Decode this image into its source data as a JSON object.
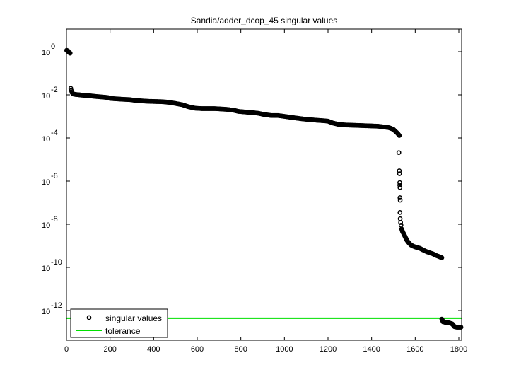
{
  "chart_data": {
    "type": "scatter",
    "title": "Sandia/adder_dcop_45 singular values",
    "xlabel": "",
    "ylabel": "",
    "xlim": [
      0,
      1813
    ],
    "ylim_log10": [
      -13.3,
      1.05
    ],
    "yscale": "log",
    "grid": false,
    "legend_position": "lower left",
    "x_ticks": [
      0,
      200,
      400,
      600,
      800,
      1000,
      1200,
      1400,
      1600,
      1800
    ],
    "y_ticks": [
      {
        "exp": 0,
        "base": "10",
        "sup": "0"
      },
      {
        "exp": -2,
        "base": "10",
        "sup": "-2"
      },
      {
        "exp": -4,
        "base": "10",
        "sup": "-4"
      },
      {
        "exp": -6,
        "base": "10",
        "sup": "-6"
      },
      {
        "exp": -8,
        "base": "10",
        "sup": "-8"
      },
      {
        "exp": -10,
        "base": "10",
        "sup": "-10"
      },
      {
        "exp": -12,
        "base": "10",
        "sup": "-12"
      }
    ],
    "series": [
      {
        "name": "singular values",
        "marker": "circle-open",
        "color": "#000000",
        "points": [
          [
            1,
            1.15
          ],
          [
            3,
            1.12
          ],
          [
            5,
            1.1
          ],
          [
            7,
            1.08
          ],
          [
            9,
            1.0
          ],
          [
            11,
            0.95
          ],
          [
            13,
            0.9
          ],
          [
            15,
            0.88
          ],
          [
            17,
            0.85
          ],
          [
            20,
            0.02
          ],
          [
            22,
            0.016
          ],
          [
            25,
            0.013
          ],
          [
            30,
            0.011
          ],
          [
            40,
            0.0105
          ],
          [
            60,
            0.01
          ],
          [
            80,
            0.0095
          ],
          [
            100,
            0.0092
          ],
          [
            130,
            0.0085
          ],
          [
            160,
            0.008
          ],
          [
            190,
            0.0075
          ],
          [
            200,
            0.0068
          ],
          [
            230,
            0.0065
          ],
          [
            260,
            0.0062
          ],
          [
            290,
            0.006
          ],
          [
            320,
            0.0055
          ],
          [
            350,
            0.0052
          ],
          [
            380,
            0.005
          ],
          [
            410,
            0.0049
          ],
          [
            440,
            0.0048
          ],
          [
            470,
            0.0045
          ],
          [
            500,
            0.004
          ],
          [
            530,
            0.0035
          ],
          [
            560,
            0.0028
          ],
          [
            590,
            0.0024
          ],
          [
            620,
            0.0023
          ],
          [
            650,
            0.0023
          ],
          [
            680,
            0.0023
          ],
          [
            710,
            0.0022
          ],
          [
            740,
            0.0021
          ],
          [
            770,
            0.0019
          ],
          [
            790,
            0.0017
          ],
          [
            820,
            0.0016
          ],
          [
            850,
            0.0015
          ],
          [
            880,
            0.0014
          ],
          [
            910,
            0.0012
          ],
          [
            940,
            0.0011
          ],
          [
            970,
            0.0011
          ],
          [
            1000,
            0.001
          ],
          [
            1030,
            0.0009
          ],
          [
            1060,
            0.00082
          ],
          [
            1090,
            0.00075
          ],
          [
            1120,
            0.0007
          ],
          [
            1150,
            0.00066
          ],
          [
            1180,
            0.00063
          ],
          [
            1200,
            0.0006
          ],
          [
            1220,
            0.0005
          ],
          [
            1250,
            0.00042
          ],
          [
            1280,
            0.0004
          ],
          [
            1310,
            0.00039
          ],
          [
            1340,
            0.00038
          ],
          [
            1370,
            0.00037
          ],
          [
            1400,
            0.00036
          ],
          [
            1430,
            0.00035
          ],
          [
            1460,
            0.00032
          ],
          [
            1480,
            0.0003
          ],
          [
            1500,
            0.00025
          ],
          [
            1510,
            0.0002
          ],
          [
            1520,
            0.00016
          ],
          [
            1527,
            0.00013
          ],
          [
            1525,
            2.1e-05
          ],
          [
            1527,
            3e-06
          ],
          [
            1528,
            2.2e-06
          ],
          [
            1529,
            8.5e-07
          ],
          [
            1529,
            6.5e-07
          ],
          [
            1530,
            5e-07
          ],
          [
            1530,
            1.7e-07
          ],
          [
            1531,
            1.3e-07
          ],
          [
            1530,
            3.5e-08
          ],
          [
            1531,
            1.8e-08
          ],
          [
            1533,
            1.2e-08
          ],
          [
            1535,
            9e-09
          ],
          [
            1538,
            6e-09
          ],
          [
            1542,
            4.5e-09
          ],
          [
            1548,
            3.5e-09
          ],
          [
            1555,
            2.5e-09
          ],
          [
            1562,
            1.8e-09
          ],
          [
            1570,
            1.4e-09
          ],
          [
            1580,
            1.1e-09
          ],
          [
            1592,
            9.5e-10
          ],
          [
            1605,
            8.5e-10
          ],
          [
            1620,
            7.8e-10
          ],
          [
            1635,
            6.5e-10
          ],
          [
            1650,
            5.5e-10
          ],
          [
            1665,
            4.8e-10
          ],
          [
            1680,
            4.3e-10
          ],
          [
            1695,
            3.6e-10
          ],
          [
            1705,
            3.3e-10
          ],
          [
            1715,
            3e-10
          ],
          [
            1722,
            2.8e-10
          ],
          [
            1722,
            4e-13
          ],
          [
            1728,
            3e-13
          ],
          [
            1740,
            2.8e-13
          ],
          [
            1755,
            2.7e-13
          ],
          [
            1770,
            2.4e-13
          ],
          [
            1780,
            1.8e-13
          ],
          [
            1790,
            1.7e-13
          ],
          [
            1800,
            1.7e-13
          ],
          [
            1810,
            1.7e-13
          ]
        ]
      },
      {
        "name": "tolerance",
        "marker": "line",
        "color": "#00e000",
        "value": 4.4e-13
      }
    ]
  },
  "legend": {
    "items": [
      {
        "label": "singular values"
      },
      {
        "label": "tolerance"
      }
    ]
  }
}
